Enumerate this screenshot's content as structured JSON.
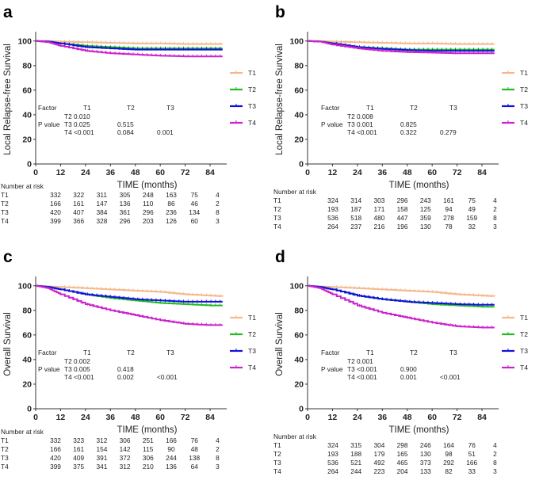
{
  "colors": {
    "T1": "#f5b88c",
    "T2": "#22bb22",
    "T3": "#1111dd",
    "T4": "#cc22cc"
  },
  "x_axis_label": "TIME (months)",
  "risk_header": "Number at risk",
  "pvalue_header": {
    "factor": "Factor",
    "pvalue": "P value"
  },
  "chart_data": [
    {
      "label": "a",
      "type": "line",
      "ylabel": "Local Relapse-free Survival",
      "xlabel": "TIME (months)",
      "xticks": [
        0,
        12,
        24,
        36,
        48,
        60,
        72,
        84
      ],
      "yticks": [
        0,
        20,
        40,
        60,
        80,
        100
      ],
      "xlim": [
        0,
        92
      ],
      "ylim": [
        0,
        105
      ],
      "legend": "right",
      "series": [
        {
          "name": "T1",
          "x": [
            0,
            6,
            12,
            24,
            36,
            48,
            60,
            72,
            84,
            90
          ],
          "y": [
            100,
            100,
            99.5,
            99,
            98.5,
            98,
            98,
            97.5,
            97.5,
            97.5
          ]
        },
        {
          "name": "T2",
          "x": [
            0,
            6,
            12,
            24,
            36,
            48,
            60,
            72,
            84,
            90
          ],
          "y": [
            100,
            99.5,
            98,
            96,
            95,
            94,
            94,
            94,
            94,
            94
          ]
        },
        {
          "name": "T3",
          "x": [
            0,
            6,
            12,
            24,
            36,
            48,
            60,
            72,
            84,
            90
          ],
          "y": [
            100,
            99.5,
            98,
            95,
            94,
            93,
            93,
            93,
            93,
            93
          ]
        },
        {
          "name": "T4",
          "x": [
            0,
            6,
            12,
            24,
            36,
            48,
            60,
            72,
            84,
            90
          ],
          "y": [
            100,
            99,
            96,
            92,
            90,
            89,
            88,
            87.5,
            87.5,
            87.5
          ]
        }
      ],
      "pvalues": {
        "columns": [
          "T1",
          "T2",
          "T3"
        ],
        "rows": [
          {
            "name": "T2",
            "values": [
              "0.010",
              "",
              ""
            ]
          },
          {
            "name": "T3",
            "values": [
              "0.025",
              "0.515",
              ""
            ]
          },
          {
            "name": "T4",
            "values": [
              "<0.001",
              "0.084",
              "0.001"
            ]
          }
        ]
      },
      "risk_table": [
        {
          "name": "T1",
          "values": [
            "332",
            "322",
            "311",
            "305",
            "248",
            "163",
            "75",
            "4"
          ]
        },
        {
          "name": "T2",
          "values": [
            "166",
            "161",
            "147",
            "136",
            "110",
            "86",
            "46",
            "2"
          ]
        },
        {
          "name": "T3",
          "values": [
            "420",
            "407",
            "384",
            "361",
            "296",
            "236",
            "134",
            "8"
          ]
        },
        {
          "name": "T4",
          "values": [
            "399",
            "366",
            "328",
            "296",
            "203",
            "126",
            "60",
            "3"
          ]
        }
      ]
    },
    {
      "label": "b",
      "type": "line",
      "ylabel": "Local Relapse-free Survival",
      "xlabel": "TIME (months)",
      "xticks": [
        0,
        12,
        24,
        36,
        48,
        60,
        72,
        84
      ],
      "yticks": [
        0,
        20,
        40,
        60,
        80,
        100
      ],
      "xlim": [
        0,
        92
      ],
      "ylim": [
        0,
        105
      ],
      "legend": "right",
      "series": [
        {
          "name": "T1",
          "x": [
            0,
            6,
            12,
            24,
            36,
            48,
            60,
            72,
            84,
            90
          ],
          "y": [
            100,
            100,
            99.5,
            99,
            98.5,
            98,
            98,
            97.5,
            97.5,
            97.5
          ]
        },
        {
          "name": "T2",
          "x": [
            0,
            6,
            12,
            24,
            36,
            48,
            60,
            72,
            84,
            90
          ],
          "y": [
            100,
            99.5,
            98,
            95,
            94,
            93,
            93,
            93,
            93,
            93
          ]
        },
        {
          "name": "T3",
          "x": [
            0,
            6,
            12,
            24,
            36,
            48,
            60,
            72,
            84,
            90
          ],
          "y": [
            100,
            99.5,
            98,
            95,
            93.5,
            92.5,
            92,
            92,
            92,
            92
          ]
        },
        {
          "name": "T4",
          "x": [
            0,
            6,
            12,
            24,
            36,
            48,
            60,
            72,
            84,
            90
          ],
          "y": [
            100,
            99.5,
            97,
            94,
            92,
            91,
            90.5,
            90,
            90,
            90
          ]
        }
      ],
      "pvalues": {
        "columns": [
          "T1",
          "T2",
          "T3"
        ],
        "rows": [
          {
            "name": "T2",
            "values": [
              "0.008",
              "",
              ""
            ]
          },
          {
            "name": "T3",
            "values": [
              "0.001",
              "0.825",
              ""
            ]
          },
          {
            "name": "T4",
            "values": [
              "<0.001",
              "0.322",
              "0.279"
            ]
          }
        ]
      },
      "risk_table": [
        {
          "name": "T1",
          "values": [
            "324",
            "314",
            "303",
            "296",
            "243",
            "161",
            "75",
            "4"
          ]
        },
        {
          "name": "T2",
          "values": [
            "193",
            "187",
            "171",
            "158",
            "125",
            "94",
            "49",
            "2"
          ]
        },
        {
          "name": "T3",
          "values": [
            "536",
            "518",
            "480",
            "447",
            "359",
            "278",
            "159",
            "8"
          ]
        },
        {
          "name": "T4",
          "values": [
            "264",
            "237",
            "216",
            "196",
            "130",
            "78",
            "32",
            "3"
          ]
        }
      ]
    },
    {
      "label": "c",
      "type": "line",
      "ylabel": "Overall Survival",
      "xlabel": "TIME (months)",
      "xticks": [
        0,
        12,
        24,
        36,
        48,
        60,
        72,
        84
      ],
      "yticks": [
        0,
        20,
        40,
        60,
        80,
        100
      ],
      "xlim": [
        0,
        92
      ],
      "ylim": [
        0,
        105
      ],
      "legend": "right",
      "series": [
        {
          "name": "T1",
          "x": [
            0,
            6,
            12,
            24,
            36,
            48,
            60,
            72,
            84,
            90
          ],
          "y": [
            100,
            99.5,
            99,
            98,
            97,
            96,
            95,
            93,
            92,
            91.5
          ]
        },
        {
          "name": "T2",
          "x": [
            0,
            6,
            12,
            24,
            36,
            48,
            60,
            72,
            84,
            90
          ],
          "y": [
            100,
            99,
            97,
            93,
            90,
            88,
            86,
            85,
            84,
            84
          ]
        },
        {
          "name": "T3",
          "x": [
            0,
            6,
            12,
            24,
            36,
            48,
            60,
            72,
            84,
            90
          ],
          "y": [
            100,
            99,
            97,
            93,
            91,
            89,
            88,
            87,
            87,
            87
          ]
        },
        {
          "name": "T4",
          "x": [
            0,
            6,
            12,
            24,
            36,
            48,
            60,
            72,
            84,
            90
          ],
          "y": [
            100,
            98,
            93,
            85,
            80,
            76,
            72,
            69,
            68,
            68
          ]
        }
      ],
      "pvalues": {
        "columns": [
          "T1",
          "T2",
          "T3"
        ],
        "rows": [
          {
            "name": "T2",
            "values": [
              "0.002",
              "",
              ""
            ]
          },
          {
            "name": "T3",
            "values": [
              "0.005",
              "0.418",
              ""
            ]
          },
          {
            "name": "T4",
            "values": [
              "<0.001",
              "0.002",
              "<0.001"
            ]
          }
        ]
      },
      "risk_table": [
        {
          "name": "T1",
          "values": [
            "332",
            "323",
            "312",
            "306",
            "251",
            "166",
            "76",
            "4"
          ]
        },
        {
          "name": "T2",
          "values": [
            "166",
            "161",
            "154",
            "142",
            "115",
            "90",
            "48",
            "2"
          ]
        },
        {
          "name": "T3",
          "values": [
            "420",
            "409",
            "391",
            "372",
            "306",
            "244",
            "138",
            "8"
          ]
        },
        {
          "name": "T4",
          "values": [
            "399",
            "375",
            "341",
            "312",
            "210",
            "136",
            "64",
            "3"
          ]
        }
      ]
    },
    {
      "label": "d",
      "type": "line",
      "ylabel": "Overall Survival",
      "xlabel": "TIME (months)",
      "xticks": [
        0,
        12,
        24,
        36,
        48,
        60,
        72,
        84
      ],
      "yticks": [
        0,
        20,
        40,
        60,
        80,
        100
      ],
      "xlim": [
        0,
        92
      ],
      "ylim": [
        0,
        105
      ],
      "legend": "right",
      "series": [
        {
          "name": "T1",
          "x": [
            0,
            6,
            12,
            24,
            36,
            48,
            60,
            72,
            84,
            90
          ],
          "y": [
            100,
            99.5,
            99,
            98,
            97,
            96,
            95,
            93,
            92,
            91.5
          ]
        },
        {
          "name": "T2",
          "x": [
            0,
            6,
            12,
            24,
            36,
            48,
            60,
            72,
            84,
            90
          ],
          "y": [
            100,
            99,
            97,
            92,
            89,
            87,
            85,
            84,
            83,
            83
          ]
        },
        {
          "name": "T3",
          "x": [
            0,
            6,
            12,
            24,
            36,
            48,
            60,
            72,
            84,
            90
          ],
          "y": [
            100,
            99,
            97,
            92,
            89,
            87,
            86,
            85,
            84.5,
            84.5
          ]
        },
        {
          "name": "T4",
          "x": [
            0,
            6,
            12,
            24,
            36,
            48,
            60,
            72,
            84,
            90
          ],
          "y": [
            100,
            98,
            93,
            84,
            78,
            74,
            70,
            67,
            66,
            66
          ]
        }
      ],
      "pvalues": {
        "columns": [
          "T1",
          "T2",
          "T3"
        ],
        "rows": [
          {
            "name": "T2",
            "values": [
              "0.001",
              "",
              ""
            ]
          },
          {
            "name": "T3",
            "values": [
              "<0.001",
              "0.900",
              ""
            ]
          },
          {
            "name": "T4",
            "values": [
              "<0.001",
              "0.001",
              "<0.001"
            ]
          }
        ]
      },
      "risk_table": [
        {
          "name": "T1",
          "values": [
            "324",
            "315",
            "304",
            "298",
            "246",
            "164",
            "76",
            "4"
          ]
        },
        {
          "name": "T2",
          "values": [
            "193",
            "188",
            "179",
            "165",
            "130",
            "98",
            "51",
            "2"
          ]
        },
        {
          "name": "T3",
          "values": [
            "536",
            "521",
            "492",
            "465",
            "373",
            "292",
            "166",
            "8"
          ]
        },
        {
          "name": "T4",
          "values": [
            "264",
            "244",
            "223",
            "204",
            "133",
            "82",
            "33",
            "3"
          ]
        }
      ]
    }
  ]
}
